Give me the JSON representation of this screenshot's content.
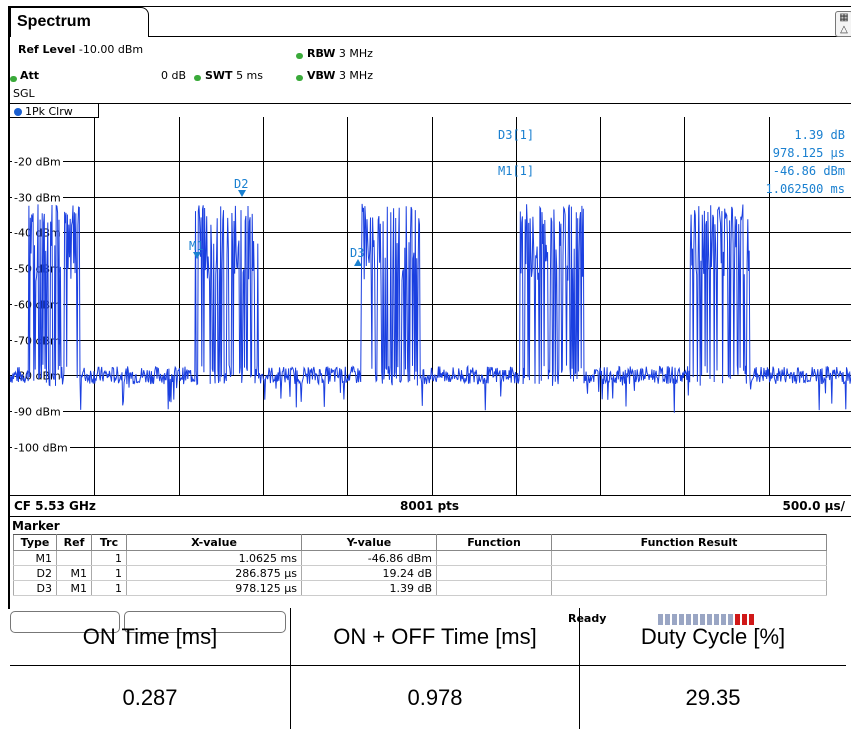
{
  "window": {
    "tab_label": "Spectrum"
  },
  "params": {
    "ref_level_label": "Ref Level",
    "ref_level_value": "-10.00 dBm",
    "att_label": "Att",
    "att_value": "0 dB",
    "swt_label": "SWT",
    "swt_value": "5 ms",
    "rbw_label": "RBW",
    "rbw_value": "3 MHz",
    "vbw_label": "VBW",
    "vbw_value": "3 MHz",
    "mode": "SGL"
  },
  "trace": {
    "label": "1Pk Clrw",
    "color": "#1a3fe0"
  },
  "axis": {
    "y_ticks": [
      "-20 dBm",
      "-30 dBm",
      "-40 dBm",
      "-50 dBm",
      "-60 dBm",
      "-70 dBm",
      "-80 dBm",
      "-90 dBm",
      "-100 dBm"
    ],
    "center_label": "CF 5.53 GHz",
    "points_label": "8001 pts",
    "span_label": "500.0 µs/"
  },
  "markers_on_plot": {
    "m1": "M1",
    "d2": "D2",
    "d3": "D3"
  },
  "readout": {
    "line1_label": "D3[1]",
    "line1_value": "1.39 dB",
    "line2_value": "978.125 µs",
    "line3_label": "M1[1]",
    "line3_value": "-46.86 dBm",
    "line4_value": "1.062500 ms"
  },
  "marker_table": {
    "title": "Marker",
    "headers": [
      "Type",
      "Ref",
      "Trc",
      "X-value",
      "Y-value",
      "Function",
      "Function Result"
    ],
    "rows": [
      [
        "M1",
        "",
        "1",
        "1.0625 ms",
        "-46.86 dBm",
        "",
        ""
      ],
      [
        "D2",
        "M1",
        "1",
        "286.875 µs",
        "19.24 dB",
        "",
        ""
      ],
      [
        "D3",
        "M1",
        "1",
        "978.125 µs",
        "1.39 dB",
        "",
        ""
      ]
    ]
  },
  "status": {
    "ready": "Ready"
  },
  "duty_table": {
    "headers": [
      "ON Time [ms]",
      "ON + OFF Time [ms]",
      "Duty Cycle [%]"
    ],
    "values": [
      "0.287",
      "0.978",
      "29.35"
    ]
  }
}
